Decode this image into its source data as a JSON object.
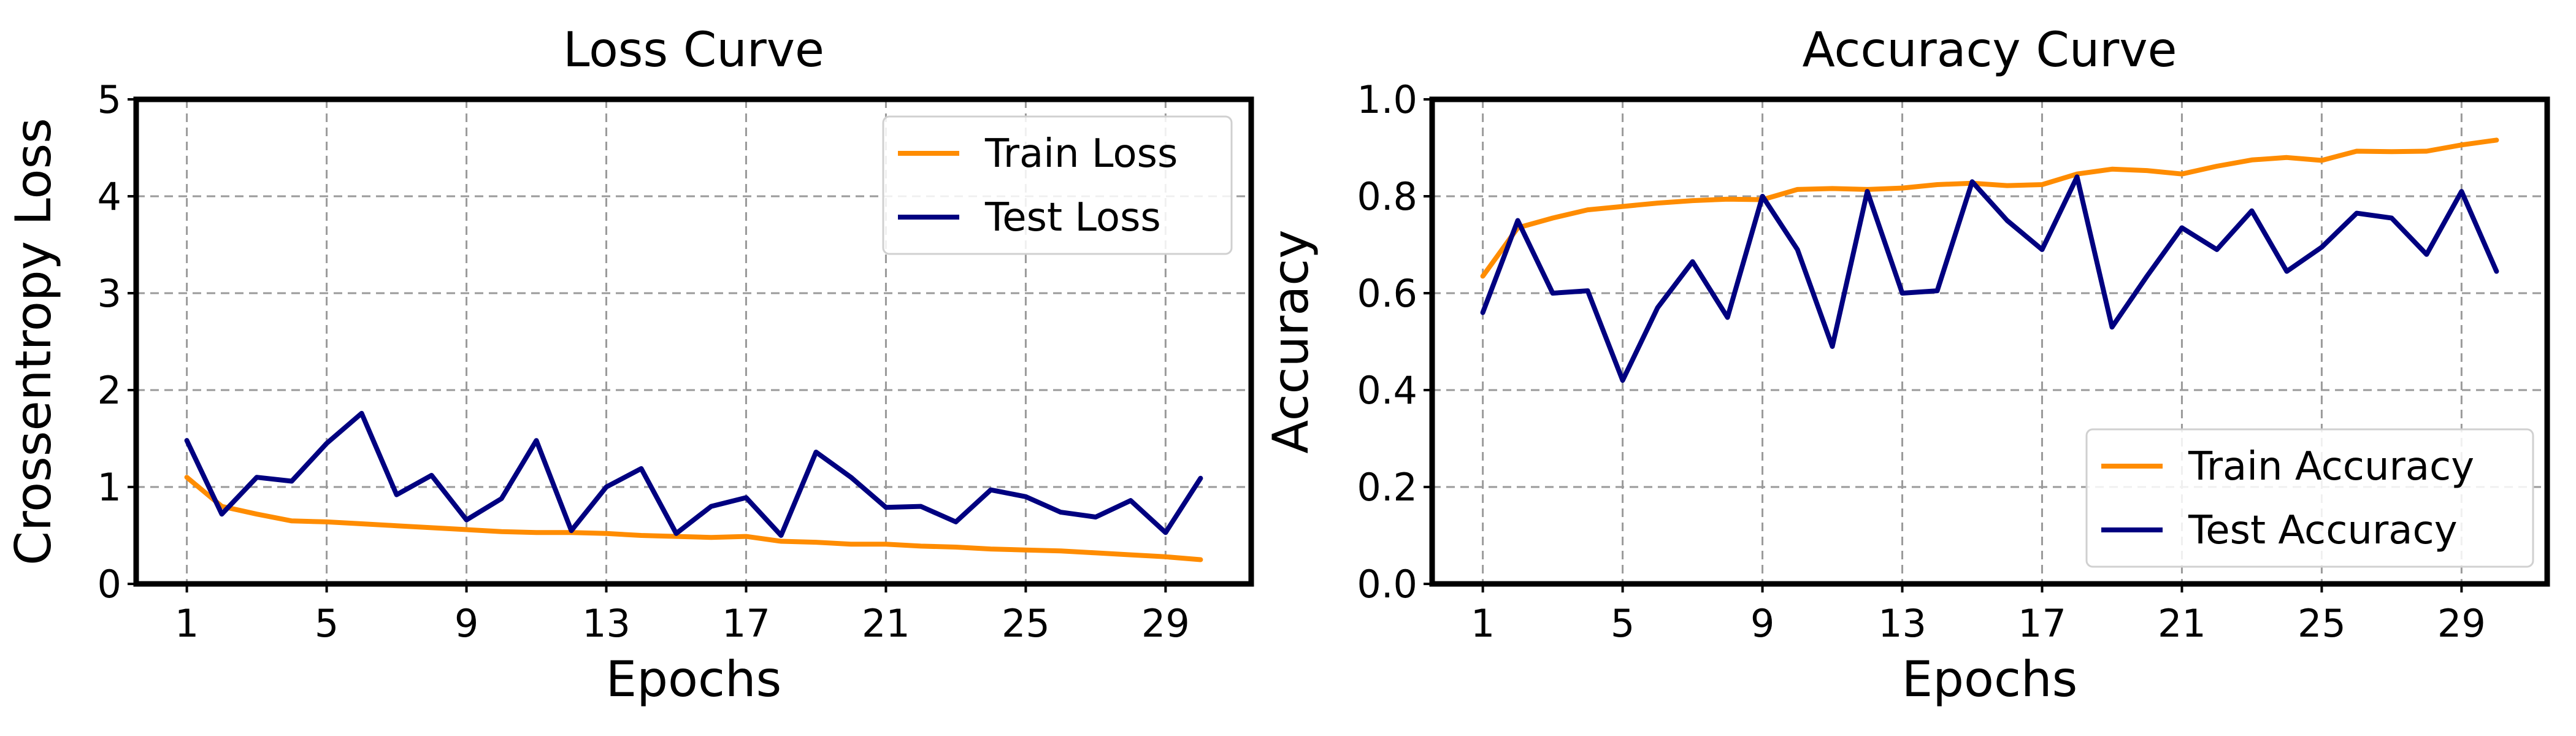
{
  "chart_data": [
    {
      "type": "line",
      "title": "Loss Curve",
      "xlabel": "Epochs",
      "ylabel": "Crossentropy Loss",
      "x": [
        1,
        2,
        3,
        4,
        5,
        6,
        7,
        8,
        9,
        10,
        11,
        12,
        13,
        14,
        15,
        16,
        17,
        18,
        19,
        20,
        21,
        22,
        23,
        24,
        25,
        26,
        27,
        28,
        29,
        30
      ],
      "xticks": [
        1,
        5,
        9,
        13,
        17,
        21,
        25,
        29
      ],
      "xlim": [
        -0.45,
        31.45
      ],
      "yticks": [
        0,
        1,
        2,
        3,
        4,
        5
      ],
      "ylim": [
        0,
        5
      ],
      "grid": true,
      "legend": "upper right",
      "series": [
        {
          "name": "Train Loss",
          "color": "#ff8c00",
          "values": [
            1.1,
            0.8,
            0.72,
            0.65,
            0.64,
            0.62,
            0.6,
            0.58,
            0.56,
            0.54,
            0.53,
            0.53,
            0.52,
            0.5,
            0.49,
            0.48,
            0.49,
            0.44,
            0.43,
            0.41,
            0.41,
            0.39,
            0.38,
            0.36,
            0.35,
            0.34,
            0.32,
            0.3,
            0.28,
            0.25
          ]
        },
        {
          "name": "Test Loss",
          "color": "#000080",
          "values": [
            1.48,
            0.72,
            1.1,
            1.06,
            1.45,
            1.76,
            0.92,
            1.12,
            0.66,
            0.88,
            1.48,
            0.55,
            1.0,
            1.19,
            0.52,
            0.8,
            0.89,
            0.5,
            1.36,
            1.1,
            0.79,
            0.8,
            0.64,
            0.97,
            0.9,
            0.74,
            0.69,
            0.86,
            0.53,
            1.09
          ]
        }
      ]
    },
    {
      "type": "line",
      "title": "Accuracy Curve",
      "xlabel": "Epochs",
      "ylabel": "Accuracy",
      "x": [
        1,
        2,
        3,
        4,
        5,
        6,
        7,
        8,
        9,
        10,
        11,
        12,
        13,
        14,
        15,
        16,
        17,
        18,
        19,
        20,
        21,
        22,
        23,
        24,
        25,
        26,
        27,
        28,
        29,
        30
      ],
      "xticks": [
        1,
        5,
        9,
        13,
        17,
        21,
        25,
        29
      ],
      "xlim": [
        -0.45,
        31.45
      ],
      "yticks": [
        0.0,
        0.2,
        0.4,
        0.6,
        0.8,
        1.0
      ],
      "ylim": [
        0,
        1
      ],
      "grid": true,
      "legend": "lower right",
      "series": [
        {
          "name": "Train Accuracy",
          "color": "#ff8c00",
          "values": [
            0.635,
            0.735,
            0.755,
            0.772,
            0.779,
            0.786,
            0.791,
            0.794,
            0.793,
            0.814,
            0.816,
            0.814,
            0.817,
            0.824,
            0.827,
            0.822,
            0.824,
            0.846,
            0.856,
            0.853,
            0.846,
            0.862,
            0.875,
            0.88,
            0.874,
            0.893,
            0.892,
            0.893,
            0.906,
            0.916
          ]
        },
        {
          "name": "Test Accuracy",
          "color": "#000080",
          "values": [
            0.56,
            0.75,
            0.6,
            0.605,
            0.42,
            0.57,
            0.665,
            0.55,
            0.8,
            0.69,
            0.49,
            0.81,
            0.6,
            0.605,
            0.83,
            0.75,
            0.69,
            0.84,
            0.53,
            0.635,
            0.735,
            0.69,
            0.77,
            0.645,
            0.695,
            0.765,
            0.755,
            0.68,
            0.81,
            0.645
          ]
        }
      ]
    }
  ]
}
